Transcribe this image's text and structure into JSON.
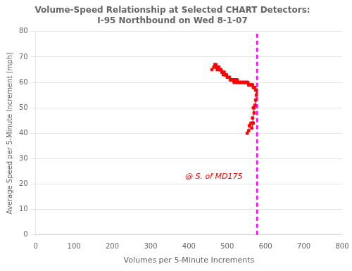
{
  "chart_data": {
    "type": "scatter",
    "title": [
      "Volume-Speed Relationship at Selected CHART Detectors:",
      "I-95 Northbound on Wed 8-1-07"
    ],
    "xlabel": "Volumes per 5-Minute Increments",
    "ylabel": "Average Speed per 5-Minute Increment (mph)",
    "x": [
      460,
      465,
      468,
      470,
      472,
      474,
      476,
      478,
      480,
      482,
      484,
      486,
      488,
      490,
      492,
      494,
      496,
      498,
      500,
      504,
      506,
      508,
      510,
      512,
      514,
      516,
      518,
      520,
      522,
      524,
      526,
      528,
      530,
      532,
      534,
      536,
      538,
      540,
      542,
      544,
      546,
      548,
      550,
      552,
      554,
      556,
      558,
      560,
      562,
      564,
      566,
      568,
      570,
      572,
      574,
      576,
      576,
      574,
      572,
      570,
      568,
      570,
      566,
      568,
      564,
      566,
      562,
      558,
      556,
      552
    ],
    "series": [
      {
        "color": "red",
        "marker": "square",
        "line_style": "solid",
        "values": [
          65,
          66,
          67,
          67,
          66,
          65,
          66,
          66,
          65,
          65,
          65,
          64,
          64,
          63,
          64,
          63,
          63,
          63,
          62,
          62,
          62,
          61,
          61,
          61,
          61,
          61,
          60,
          61,
          61,
          60,
          61,
          60,
          60,
          60,
          60,
          60,
          60,
          60,
          60,
          60,
          60,
          60,
          60,
          60,
          60,
          59,
          59,
          59,
          59,
          59,
          59,
          58,
          58,
          58,
          57,
          57,
          55,
          53,
          51,
          50,
          50,
          48,
          46,
          44,
          42,
          44,
          44,
          43,
          41,
          40
        ]
      }
    ],
    "xlim": [
      0,
      800
    ],
    "ylim": [
      0,
      80
    ],
    "xticks": [
      0,
      100,
      200,
      300,
      400,
      500,
      600,
      700,
      800
    ],
    "yticks": [
      0,
      10,
      20,
      30,
      40,
      50,
      60,
      70,
      80
    ],
    "grid": "y",
    "annotations": [
      {
        "type": "vline",
        "x": 578,
        "color": "#ff00ff",
        "line_style": "dashed"
      },
      {
        "type": "text",
        "x": 390,
        "y": 22,
        "text": "@ S. of MD175",
        "color": "red"
      }
    ]
  }
}
